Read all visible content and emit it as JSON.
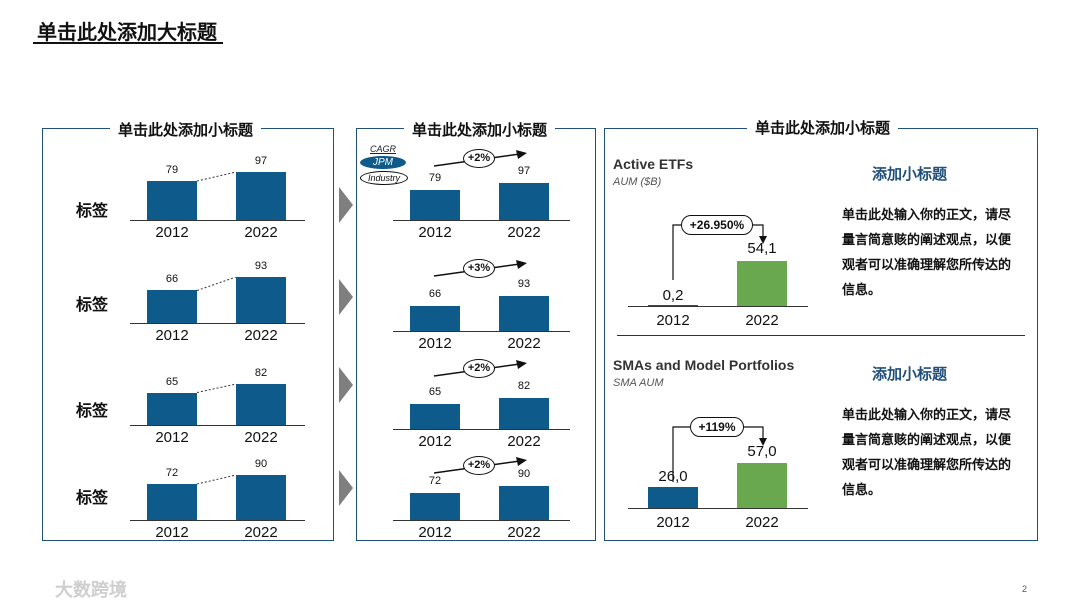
{
  "title": "单击此处添加大标题",
  "panels": {
    "left_title": "单击此处添加小标题",
    "mid_title": "单击此处添加小标题",
    "right_title": "单击此处添加小标题"
  },
  "row_label": "标签",
  "rows": [
    {
      "y2012": 79,
      "y2022": 97,
      "cagr": "+2%"
    },
    {
      "y2012": 66,
      "y2022": 93,
      "cagr": "+3%"
    },
    {
      "y2012": 65,
      "y2022": 82,
      "cagr": "+2%"
    },
    {
      "y2012": 72,
      "y2022": 90,
      "cagr": "+2%"
    }
  ],
  "years": [
    "2012",
    "2022"
  ],
  "legend": {
    "cagr": "CAGR",
    "jpm": "JPM",
    "industry": "Industry"
  },
  "sections": [
    {
      "title": "Active ETFs",
      "subtitle": "AUM ($B)",
      "v2012": "0,2",
      "v2022": "54,1",
      "growth": "+26.950%",
      "heading": "添加小标题",
      "body": "单击此处输入你的正文，请尽量言简意赅的阐述观点，以便观者可以准确理解您所传达的信息。"
    },
    {
      "title": "SMAs and Model Portfolios",
      "subtitle": "SMA AUM",
      "v2012": "26,0",
      "v2022": "57,0",
      "growth": "+119%",
      "heading": "添加小标题",
      "body": "单击此处输入你的正文，请尽量言简意赅的阐述观点，以便观者可以准确理解您所传达的信息。"
    }
  ],
  "colors": {
    "bar_blue": "#0e5a8a",
    "bar_green": "#6aa84f",
    "frame": "#1f4f7a"
  },
  "page_number": "2",
  "watermark": "大数跨境"
}
